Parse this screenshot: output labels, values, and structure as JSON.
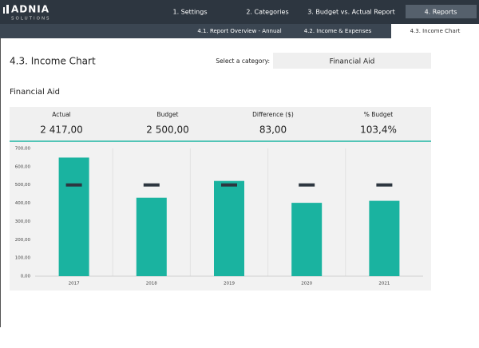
{
  "nav": {
    "logo": "ADNIA",
    "logo_sub": "SOLUTIONS",
    "tabs": [
      "1. Settings",
      "2. Categories",
      "3. Budget vs. Actual Report",
      "4. Reports"
    ],
    "subtabs": [
      "4.1. Report Overview - Annual",
      "4.2. Income & Expenses",
      "4.3. Income Chart"
    ]
  },
  "page": {
    "title": "4.3. Income Chart",
    "select_label": "Select a category:",
    "select_value": "Financial Aid",
    "section_title": "Financial Aid"
  },
  "kpis": [
    {
      "label": "Actual",
      "value": "2 417,00"
    },
    {
      "label": "Budget",
      "value": "2 500,00"
    },
    {
      "label": "Difference ($)",
      "value": "83,00"
    },
    {
      "label": "% Budget",
      "value": "103,4%"
    }
  ],
  "chart_data": {
    "type": "bar",
    "categories": [
      "2017",
      "2018",
      "2019",
      "2020",
      "2021"
    ],
    "series": [
      {
        "color": "#1ab3a0",
        "values": [
          650,
          430,
          522,
          402,
          413
        ]
      },
      {
        "color": "#2d3640",
        "style": "dash",
        "values": [
          500,
          500,
          500,
          500,
          500
        ]
      }
    ],
    "ylim": [
      0,
      700
    ],
    "yticks": [
      {
        "value": 0,
        "label": "0,00"
      },
      {
        "value": 100,
        "label": "100,00"
      },
      {
        "value": 200,
        "label": "200,00"
      },
      {
        "value": 300,
        "label": "300,00"
      },
      {
        "value": 400,
        "label": "400,00"
      },
      {
        "value": 500,
        "label": "500,00"
      },
      {
        "value": 600,
        "label": "600,00"
      },
      {
        "value": 700,
        "label": "700,00"
      }
    ]
  }
}
